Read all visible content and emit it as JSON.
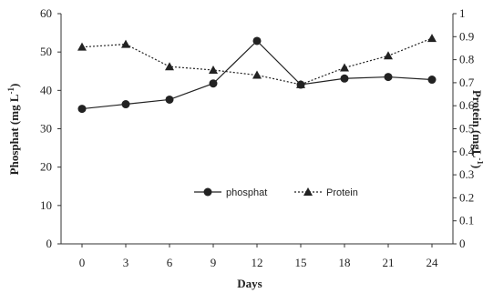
{
  "chart_data": {
    "type": "line",
    "title": "",
    "xlabel": "Days",
    "ylabel_left": "Phosphat (mg L",
    "ylabel_left_sup": "-1",
    "ylabel_left_close": ")",
    "ylabel_right": "Protein (mgL",
    "ylabel_right_sup": "-1",
    "ylabel_right_close": ")",
    "x": [
      0,
      3,
      6,
      9,
      12,
      15,
      18,
      21,
      24
    ],
    "x_tick_labels": [
      "0",
      "3",
      "6",
      "9",
      "12",
      "15",
      "18",
      "21",
      "24"
    ],
    "ylim_left": [
      0,
      60
    ],
    "y_ticks_left": [
      "0",
      "10",
      "20",
      "30",
      "40",
      "50",
      "60"
    ],
    "ylim_right": [
      0,
      1
    ],
    "y_ticks_right": [
      "0",
      "0.1",
      "0.2",
      "0.3",
      "0.4",
      "0.5",
      "0.6",
      "0.7",
      "0.8",
      "0.9",
      "1"
    ],
    "grid": false,
    "legend_position": "center",
    "series": [
      {
        "name": "phosphat",
        "axis": "left",
        "marker": "circle",
        "line_style": "solid",
        "values": [
          35.2,
          36.4,
          37.6,
          41.8,
          52.9,
          41.5,
          43.1,
          43.5,
          42.8
        ]
      },
      {
        "name": "Protein",
        "axis": "right",
        "marker": "triangle",
        "line_style": "dotted",
        "values": [
          0.855,
          0.867,
          0.77,
          0.755,
          0.733,
          0.692,
          0.765,
          0.817,
          0.893
        ]
      }
    ],
    "colors": {
      "line": "#222222",
      "axis": "#333333"
    }
  }
}
